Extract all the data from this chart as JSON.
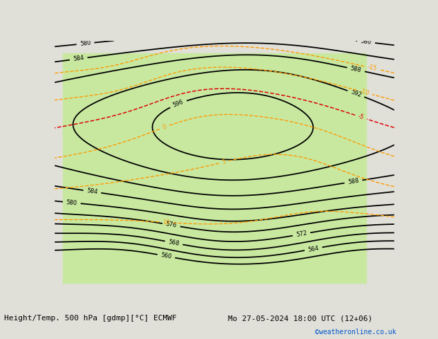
{
  "title_left": "Height/Temp. 500 hPa [gdmp][°C] ECMWF",
  "title_right": "Mo 27-05-2024 18:00 UTC (12+06)",
  "credit": "©weatheronline.co.uk",
  "fig_width": 6.34,
  "fig_height": 4.9,
  "dpi": 100,
  "land_green_color": "#c8e8a0",
  "land_gray_color": "#d8d8d0",
  "ocean_color": "#e8e8e8",
  "bg_color": "#e0e0d8",
  "contour_black_color": "#000000",
  "contour_orange_color": "#ff9900",
  "contour_red_color": "#dd0000",
  "contour_green_color": "#88cc00",
  "contour_cyan_color": "#00cccc",
  "contour_magenta_color": "#cc00cc",
  "label_fontsize": 6,
  "footer_fontsize": 8,
  "credit_color": "#0055cc",
  "extent": [
    -22,
    62,
    -42,
    42
  ]
}
